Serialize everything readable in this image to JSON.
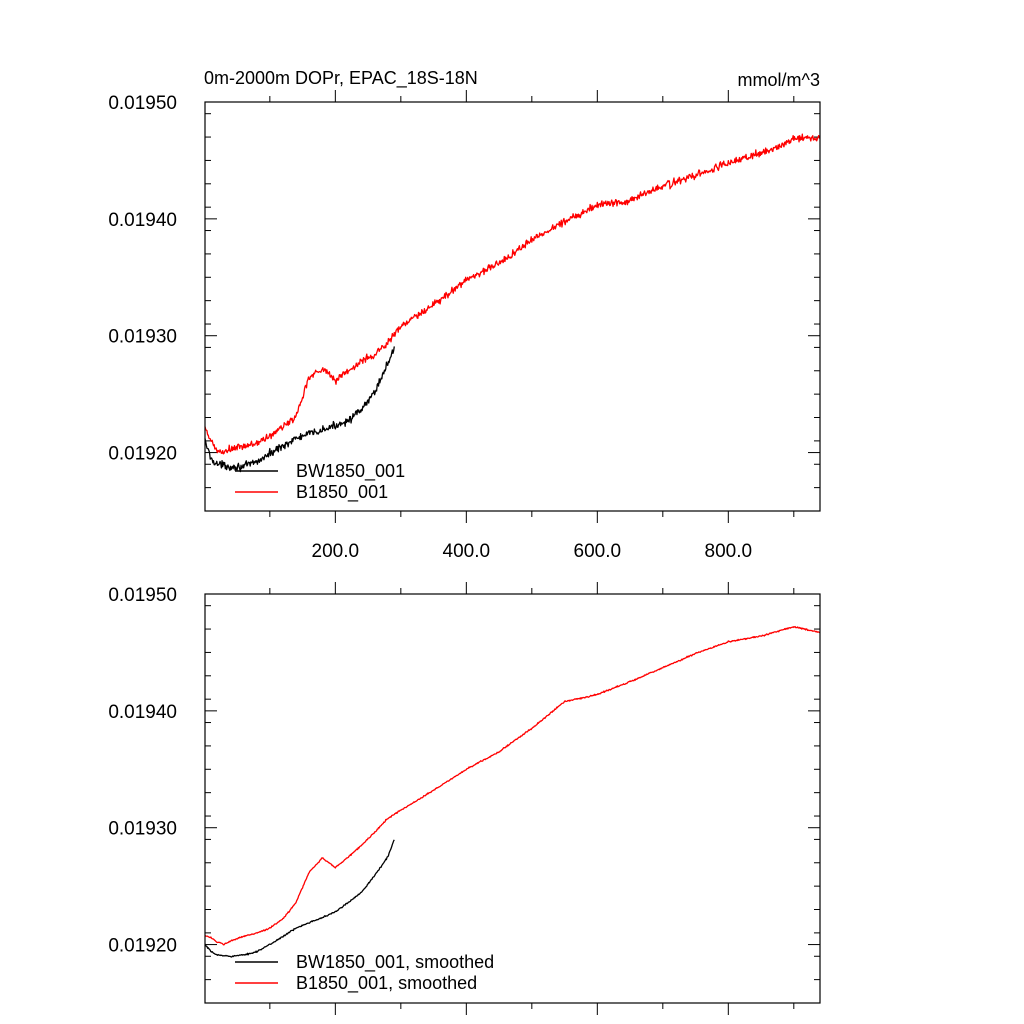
{
  "colors": {
    "black_series": "#000000",
    "red_series": "#ff0000",
    "background": "#ffffff"
  },
  "chart_data": [
    {
      "type": "line",
      "title_left": "0m-2000m DOPr, EPAC_18S-18N",
      "title_right": "mmol/m^3",
      "xlim": [
        1,
        940
      ],
      "ylim": [
        0.01915,
        0.0195
      ],
      "x_ticks": [
        200,
        400,
        600,
        800
      ],
      "x_tick_labels": [
        "200.0",
        "400.0",
        "600.0",
        "800.0"
      ],
      "y_ticks": [
        0.0192,
        0.0193,
        0.0194,
        0.0195
      ],
      "y_tick_labels": [
        "0.01920",
        "0.01930",
        "0.01940",
        "0.01950"
      ],
      "series": [
        {
          "name": "BW1850_001",
          "color": "#000000",
          "noise": 1.6e-06,
          "x": [
            1,
            10,
            20,
            40,
            60,
            80,
            100,
            120,
            140,
            160,
            180,
            200,
            220,
            240,
            260,
            280,
            290
          ],
          "y": [
            0.01921,
            0.019195,
            0.01919,
            0.019188,
            0.019188,
            0.019192,
            0.019199,
            0.019206,
            0.019212,
            0.019216,
            0.019219,
            0.019223,
            0.019228,
            0.019236,
            0.019252,
            0.019276,
            0.01929
          ]
        },
        {
          "name": "B1850_001",
          "color": "#ff0000",
          "noise": 1.6e-06,
          "x": [
            1,
            10,
            20,
            30,
            40,
            60,
            80,
            100,
            120,
            140,
            160,
            180,
            200,
            220,
            240,
            260,
            280,
            300,
            350,
            400,
            450,
            500,
            550,
            600,
            650,
            700,
            750,
            800,
            850,
            900,
            940
          ],
          "y": [
            0.01922,
            0.01921,
            0.019201,
            0.0192,
            0.019203,
            0.019205,
            0.019208,
            0.019214,
            0.019222,
            0.019231,
            0.019265,
            0.019272,
            0.019262,
            0.01927,
            0.019278,
            0.019284,
            0.019294,
            0.019308,
            0.019326,
            0.019348,
            0.019362,
            0.019382,
            0.019398,
            0.019412,
            0.019416,
            0.019428,
            0.019437,
            0.019448,
            0.019456,
            0.019468,
            0.01947
          ]
        }
      ],
      "legend": [
        {
          "label": "BW1850_001",
          "color": "#000000"
        },
        {
          "label": "B1850_001",
          "color": "#ff0000"
        }
      ],
      "legend_position": "bottom-left"
    },
    {
      "type": "line",
      "title_left": "",
      "title_right": "",
      "xlim": [
        1,
        940
      ],
      "ylim": [
        0.01915,
        0.0195
      ],
      "x_ticks": [
        200,
        400,
        600,
        800
      ],
      "x_tick_labels": [],
      "y_ticks": [
        0.0192,
        0.0193,
        0.0194,
        0.0195
      ],
      "y_tick_labels": [
        "0.01920",
        "0.01930",
        "0.01940",
        "0.01950"
      ],
      "series": [
        {
          "name": "BW1850_001, smoothed",
          "color": "#000000",
          "noise": 3e-07,
          "x": [
            1,
            10,
            20,
            40,
            60,
            80,
            100,
            120,
            140,
            160,
            180,
            200,
            220,
            240,
            260,
            280,
            290
          ],
          "y": [
            0.0192,
            0.019194,
            0.019191,
            0.01919,
            0.019191,
            0.019194,
            0.0192,
            0.019207,
            0.019214,
            0.019219,
            0.019223,
            0.019228,
            0.019236,
            0.019245,
            0.019259,
            0.019275,
            0.01929
          ]
        },
        {
          "name": "B1850_001, smoothed",
          "color": "#ff0000",
          "noise": 3e-07,
          "x": [
            1,
            10,
            20,
            30,
            40,
            60,
            80,
            100,
            120,
            140,
            160,
            180,
            200,
            220,
            240,
            260,
            280,
            300,
            350,
            400,
            450,
            500,
            550,
            600,
            650,
            700,
            750,
            800,
            850,
            900,
            940
          ],
          "y": [
            0.019208,
            0.019206,
            0.019202,
            0.0192,
            0.019203,
            0.019207,
            0.01921,
            0.019214,
            0.019222,
            0.019236,
            0.019262,
            0.019274,
            0.019266,
            0.019275,
            0.019285,
            0.019296,
            0.019308,
            0.019315,
            0.019332,
            0.01935,
            0.019365,
            0.019385,
            0.019408,
            0.019414,
            0.019425,
            0.019437,
            0.019449,
            0.019459,
            0.019464,
            0.019472,
            0.019467
          ]
        }
      ],
      "legend": [
        {
          "label": "BW1850_001, smoothed",
          "color": "#000000"
        },
        {
          "label": "B1850_001, smoothed",
          "color": "#ff0000"
        }
      ],
      "legend_position": "bottom-left"
    }
  ]
}
